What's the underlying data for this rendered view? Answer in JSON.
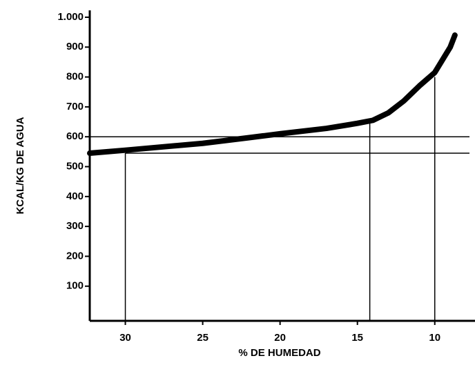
{
  "chart_data": {
    "type": "line",
    "x_label": "% DE HUMEDAD",
    "y_label": "KCAL/KG DE AGUA",
    "x": [
      32.3,
      30,
      25,
      22,
      20,
      17,
      15,
      14,
      13,
      12,
      11,
      10,
      9,
      8.7
    ],
    "series": [
      {
        "color": "#000000",
        "values": [
          545,
          555,
          578,
          597,
          610,
          628,
          645,
          655,
          680,
          720,
          770,
          815,
          900,
          940
        ]
      }
    ],
    "xlim": [
      32.3,
      7.4
    ],
    "xticks": [
      30,
      25,
      20,
      15,
      10
    ],
    "ylim": [
      -16,
      1023
    ],
    "yticks": [
      100,
      200,
      300,
      400,
      500,
      600,
      700,
      800,
      {
        "value": 900,
        "label": "900"
      },
      {
        "value": 1000,
        "label": "1.000"
      }
    ],
    "guides": {
      "horizontal": [
        {
          "y": 600,
          "x_from": 32.3
        },
        {
          "y": 545,
          "x_from": 30
        }
      ],
      "vertical": [
        {
          "x": 30,
          "y": 545
        },
        {
          "x": 14.2,
          "y": 655
        },
        {
          "x": 10,
          "y": 800
        }
      ]
    }
  }
}
